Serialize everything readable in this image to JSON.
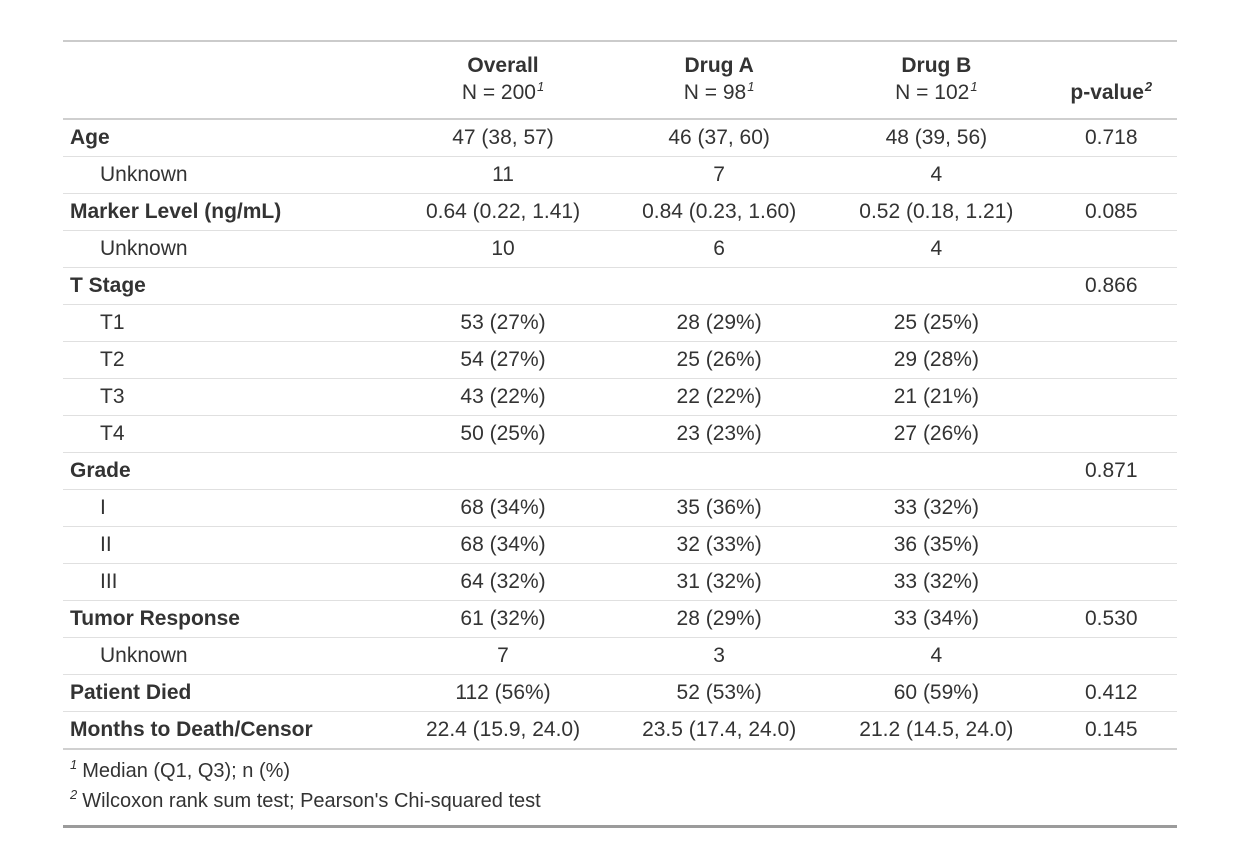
{
  "chart_data": {
    "type": "table",
    "columns": [
      {
        "label": "",
        "sublabel": "",
        "sup": ""
      },
      {
        "label": "Overall",
        "sublabel": "N = 200",
        "sup": "1"
      },
      {
        "label": "Drug A",
        "sublabel": "N = 98",
        "sup": "1"
      },
      {
        "label": "Drug B",
        "sublabel": "N = 102",
        "sup": "1"
      },
      {
        "label": "p-value",
        "sublabel": "",
        "sup": "2"
      }
    ],
    "rows": [
      {
        "label": "Age",
        "bold": true,
        "indent": false,
        "values": [
          "47 (38, 57)",
          "46 (37, 60)",
          "48 (39, 56)",
          "0.718"
        ]
      },
      {
        "label": "Unknown",
        "bold": false,
        "indent": true,
        "values": [
          "11",
          "7",
          "4",
          ""
        ]
      },
      {
        "label": "Marker Level (ng/mL)",
        "bold": true,
        "indent": false,
        "values": [
          "0.64 (0.22, 1.41)",
          "0.84 (0.23, 1.60)",
          "0.52 (0.18, 1.21)",
          "0.085"
        ]
      },
      {
        "label": "Unknown",
        "bold": false,
        "indent": true,
        "values": [
          "10",
          "6",
          "4",
          ""
        ]
      },
      {
        "label": "T Stage",
        "bold": true,
        "indent": false,
        "values": [
          "",
          "",
          "",
          "0.866"
        ]
      },
      {
        "label": "T1",
        "bold": false,
        "indent": true,
        "values": [
          "53 (27%)",
          "28 (29%)",
          "25 (25%)",
          ""
        ]
      },
      {
        "label": "T2",
        "bold": false,
        "indent": true,
        "values": [
          "54 (27%)",
          "25 (26%)",
          "29 (28%)",
          ""
        ]
      },
      {
        "label": "T3",
        "bold": false,
        "indent": true,
        "values": [
          "43 (22%)",
          "22 (22%)",
          "21 (21%)",
          ""
        ]
      },
      {
        "label": "T4",
        "bold": false,
        "indent": true,
        "values": [
          "50 (25%)",
          "23 (23%)",
          "27 (26%)",
          ""
        ]
      },
      {
        "label": "Grade",
        "bold": true,
        "indent": false,
        "values": [
          "",
          "",
          "",
          "0.871"
        ]
      },
      {
        "label": "I",
        "bold": false,
        "indent": true,
        "values": [
          "68 (34%)",
          "35 (36%)",
          "33 (32%)",
          ""
        ]
      },
      {
        "label": "II",
        "bold": false,
        "indent": true,
        "values": [
          "68 (34%)",
          "32 (33%)",
          "36 (35%)",
          ""
        ]
      },
      {
        "label": "III",
        "bold": false,
        "indent": true,
        "values": [
          "64 (32%)",
          "31 (32%)",
          "33 (32%)",
          ""
        ]
      },
      {
        "label": "Tumor Response",
        "bold": true,
        "indent": false,
        "values": [
          "61 (32%)",
          "28 (29%)",
          "33 (34%)",
          "0.530"
        ]
      },
      {
        "label": "Unknown",
        "bold": false,
        "indent": true,
        "values": [
          "7",
          "3",
          "4",
          ""
        ]
      },
      {
        "label": "Patient Died",
        "bold": true,
        "indent": false,
        "values": [
          "112 (56%)",
          "52 (53%)",
          "60 (59%)",
          "0.412"
        ]
      },
      {
        "label": "Months to Death/Censor",
        "bold": true,
        "indent": false,
        "values": [
          "22.4 (15.9, 24.0)",
          "23.5 (17.4, 24.0)",
          "21.2 (14.5, 24.0)",
          "0.145"
        ]
      }
    ],
    "footnotes": [
      {
        "mark": "1",
        "text": "Median (Q1, Q3); n (%)"
      },
      {
        "mark": "2",
        "text": "Wilcoxon rank sum test; Pearson's Chi-squared test"
      }
    ],
    "colors": {
      "text": "#333333",
      "top_border": "#cbcbcb",
      "header_border": "#cfcfcf",
      "row_separator": "#e0e0e0",
      "body_bottom_border": "#d0d0d0",
      "table_bottom_border": "#9b9b9b",
      "background": "#ffffff"
    }
  }
}
